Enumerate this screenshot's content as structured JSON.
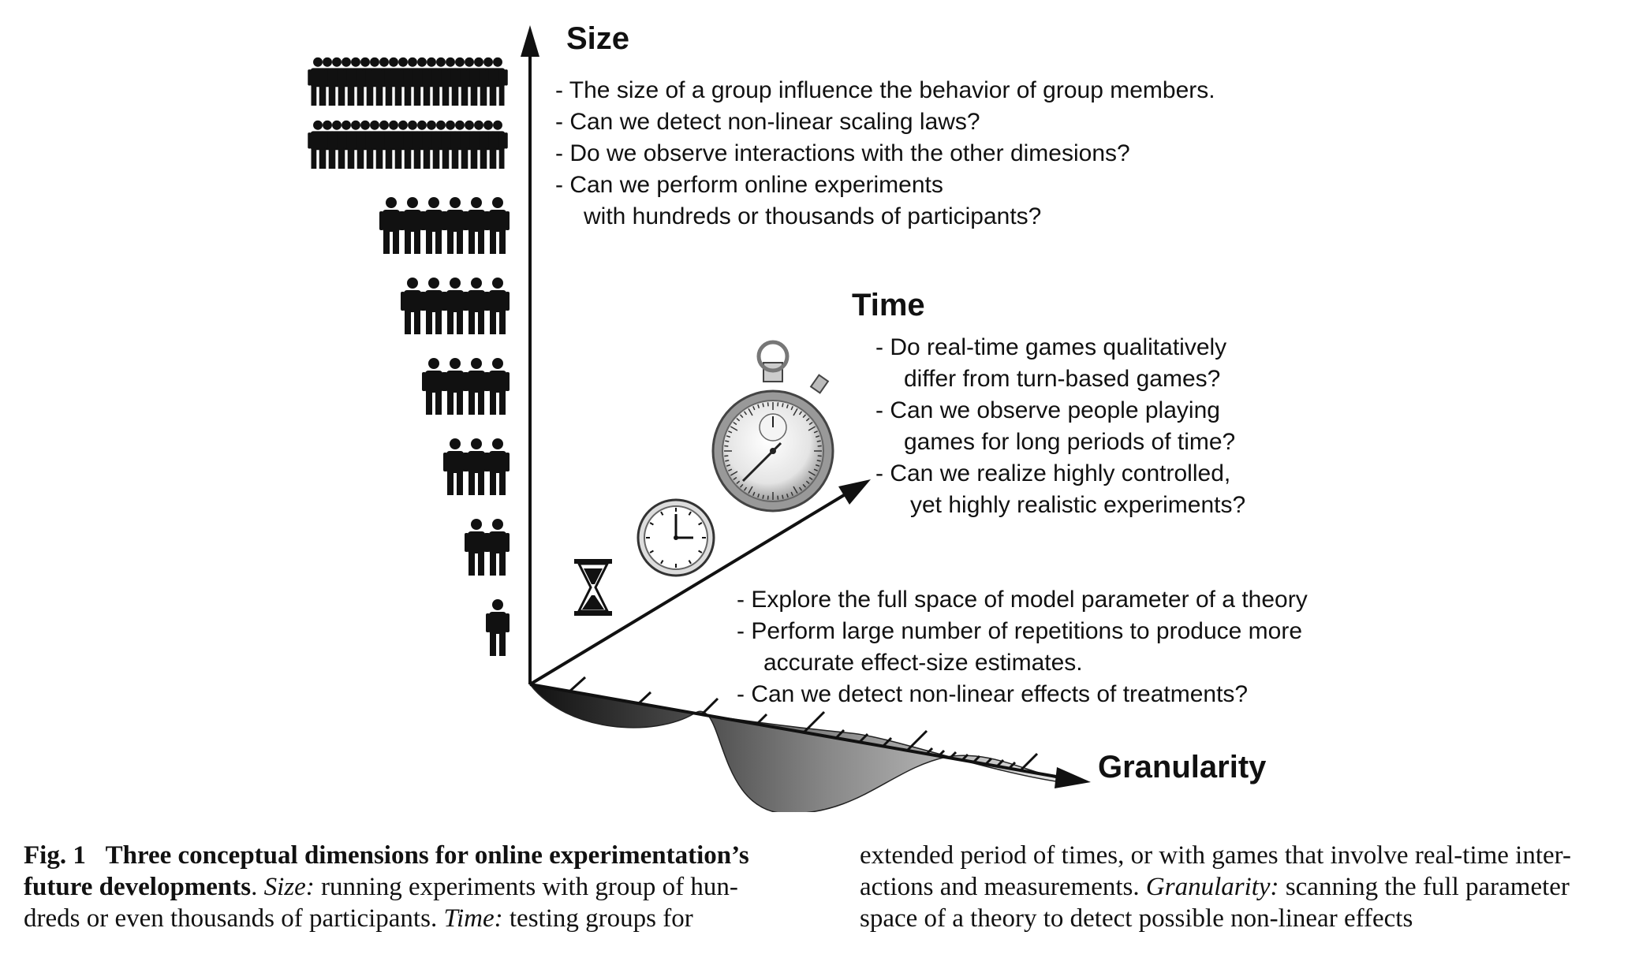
{
  "axes": {
    "size": {
      "label": "Size",
      "questions": [
        "- The size of a group influence the behavior of group members.",
        "- Can we detect non-linear scaling laws?",
        "- Do we observe interactions with the other dimesions?",
        "- Can we perform online experiments",
        "with hundreds or thousands of participants?"
      ]
    },
    "time": {
      "label": "Time",
      "questions": [
        "- Do real-time games qualitatively",
        "differ from turn-based games?",
        "- Can we observe people playing",
        "games for long periods of time?",
        "- Can we realize highly controlled,",
        "yet highly realistic experiments?"
      ]
    },
    "granularity": {
      "label": "Granularity",
      "questions": [
        "- Explore the full space of model parameter of a theory",
        "- Perform large number of repetitions to produce more",
        "accurate effect-size estimates.",
        "- Can we detect non-linear effects of treatments?"
      ]
    }
  },
  "icons": {
    "people_rows": [
      20,
      20,
      6,
      5,
      4,
      3,
      2,
      1
    ],
    "time_icons": [
      "hourglass-icon",
      "clock-icon",
      "stopwatch-icon"
    ]
  },
  "caption": {
    "fig_label": "Fig. 1",
    "col1": {
      "bold1": "Three conceptual dimensions for online experimentation’s",
      "bold2": "future developments",
      "l2_rest": ". ",
      "size_label": "Size:",
      "l2_tail": " running experiments with group of hun-",
      "l3_head": "dreds or even thousands of participants. ",
      "time_label": "Time:",
      "l3_tail": " testing groups for"
    },
    "col2": {
      "l1": "extended period of times, or with games that involve real-time inter-",
      "l2_head": "actions and measurements. ",
      "granularity_label": "Granularity:",
      "l2_tail": " scanning the full parameter",
      "l3": "space of a theory to detect possible non-linear effects"
    }
  }
}
